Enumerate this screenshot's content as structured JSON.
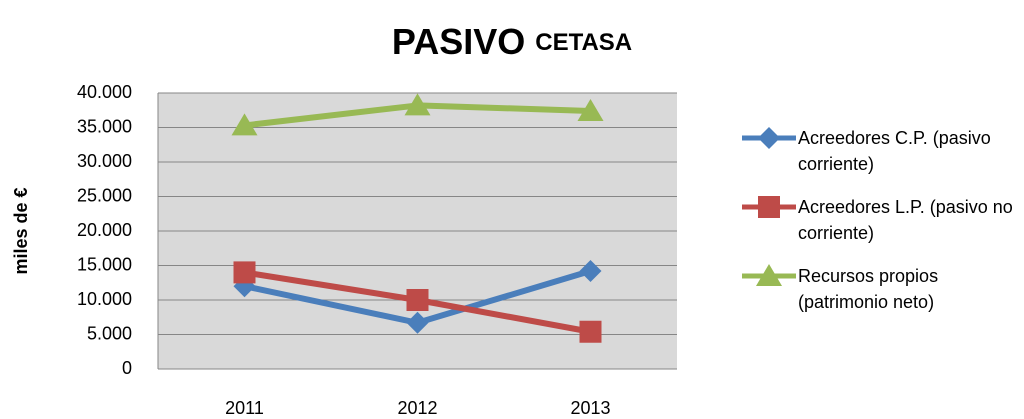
{
  "chart_data": {
    "type": "line",
    "title": "PASIVO",
    "subtitle": "CETASA",
    "y_label": "miles de €",
    "categories": [
      "2011",
      "2012",
      "2013"
    ],
    "series": [
      {
        "name": "Acreedores C.P. (pasivo corriente)",
        "color": "#4a7ebb",
        "marker": "diamond",
        "values": [
          12000,
          6700,
          14200
        ]
      },
      {
        "name": "Acreedores L.P. (pasivo no corriente)",
        "color": "#be4b48",
        "marker": "square",
        "values": [
          14000,
          10000,
          5400
        ]
      },
      {
        "name": "Recursos propios (patrimonio neto)",
        "color": "#98b954",
        "marker": "triangle",
        "values": [
          35300,
          38200,
          37400
        ]
      }
    ],
    "ylim": [
      0,
      40000
    ],
    "yticks": [
      0,
      {
        "value": 5000,
        "label": "5.000"
      },
      {
        "value": 10000,
        "label": "10.000"
      },
      {
        "value": 15000,
        "label": "15.000"
      },
      {
        "value": 20000,
        "label": "20.000"
      },
      {
        "value": 25000,
        "label": "25.000"
      },
      {
        "value": 30000,
        "label": "30.000"
      },
      {
        "value": 35000,
        "label": "35.000"
      },
      {
        "value": 40000,
        "label": "40.000"
      }
    ],
    "grid": true,
    "legend": "right"
  }
}
